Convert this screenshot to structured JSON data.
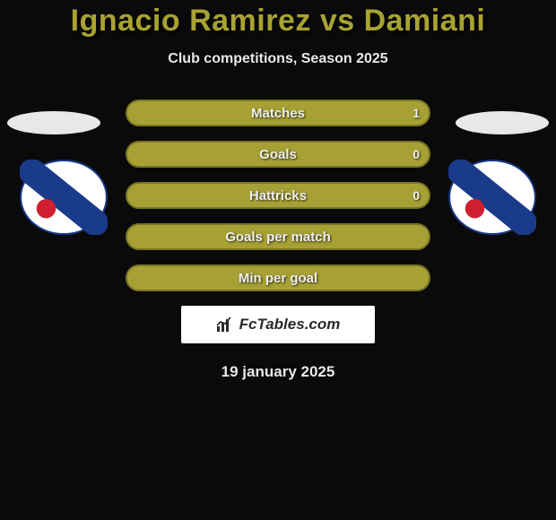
{
  "title": "Ignacio Ramirez vs Damiani",
  "subtitle": "Club competitions, Season 2025",
  "date": "19 january 2025",
  "brand": "FcTables.com",
  "colors": {
    "title": "#a8a232",
    "text": "#eaeaea",
    "bar_fill": "#a7a035",
    "bar_border": "#7a7526",
    "background": "#0a0a0a",
    "ellipse": "#e8e8e8",
    "brand_bg": "#ffffff",
    "brand_text": "#2a2a2a"
  },
  "bars": [
    {
      "label": "Matches",
      "left": "",
      "right": "1"
    },
    {
      "label": "Goals",
      "left": "",
      "right": "0"
    },
    {
      "label": "Hattricks",
      "left": "",
      "right": "0"
    },
    {
      "label": "Goals per match",
      "left": "",
      "right": ""
    },
    {
      "label": "Min per goal",
      "left": "",
      "right": ""
    }
  ],
  "club_badge": {
    "bg": "#ffffff",
    "stripe": "#1a3a8a",
    "ball": "#d02030",
    "text": "#1a3a8a"
  }
}
